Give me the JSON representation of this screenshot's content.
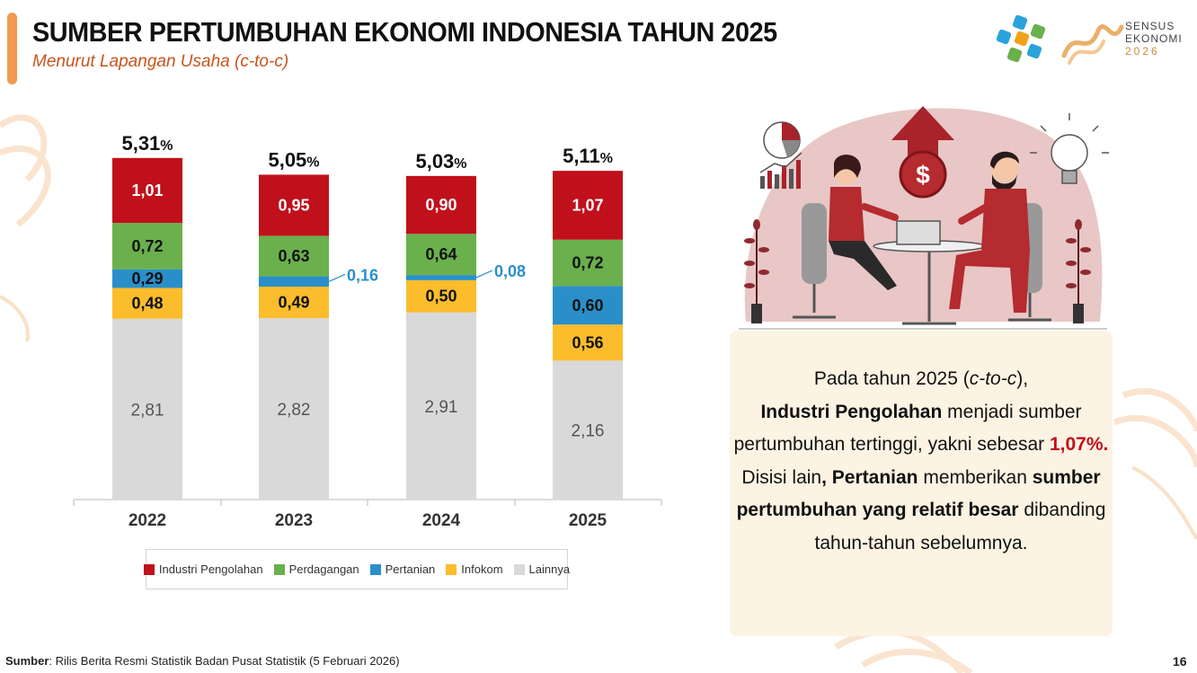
{
  "header": {
    "title": "SUMBER PERTUMBUHAN EKONOMI INDONESIA TAHUN 2025",
    "subtitle": "Menurut Lapangan Usaha (c-to-c)"
  },
  "logo": {
    "line1": "SENSUS",
    "line2": "EKONOMI",
    "line3": "2026"
  },
  "chart_data": {
    "type": "bar",
    "stacked": true,
    "categories": [
      "2022",
      "2023",
      "2024",
      "2025"
    ],
    "totals": [
      "5,31",
      "5,05",
      "5,03",
      "5,11"
    ],
    "total_suffix": "%",
    "series": [
      {
        "name": "Lainnya",
        "color": "#d9d9d9",
        "values": [
          2.81,
          2.82,
          2.91,
          2.16
        ],
        "labels": [
          "2,81",
          "2,82",
          "2,91",
          "2,16"
        ]
      },
      {
        "name": "Infokom",
        "color": "#fbbd2c",
        "values": [
          0.48,
          0.49,
          0.5,
          0.56
        ],
        "labels": [
          "0,48",
          "0,49",
          "0,50",
          "0,56"
        ]
      },
      {
        "name": "Pertanian",
        "color": "#2a8fc9",
        "values": [
          0.29,
          0.16,
          0.08,
          0.6
        ],
        "labels": [
          "0,29",
          "0,16",
          "0,08",
          "0,60"
        ]
      },
      {
        "name": "Perdagangan",
        "color": "#6ab04c",
        "values": [
          0.72,
          0.63,
          0.64,
          0.72
        ],
        "labels": [
          "0,72",
          "0,63",
          "0,64",
          "0,72"
        ]
      },
      {
        "name": "Industri Pengolahan",
        "color": "#c0101b",
        "values": [
          1.01,
          0.95,
          0.9,
          1.07
        ],
        "labels": [
          "1,01",
          "0,95",
          "0,90",
          "1,07"
        ]
      }
    ],
    "legend_position": "bottom",
    "grid": false
  },
  "legend": [
    {
      "name": "Industri Pengolahan",
      "color": "#c0101b"
    },
    {
      "name": "Perdagangan",
      "color": "#6ab04c"
    },
    {
      "name": "Pertanian",
      "color": "#2a8fc9"
    },
    {
      "name": "Infokom",
      "color": "#fbbd2c"
    },
    {
      "name": "Lainnya",
      "color": "#d9d9d9"
    }
  ],
  "panel": {
    "p1": "Pada tahun 2025 (",
    "p1_italic": "c-to-c",
    "p1_end": "),",
    "b1": "Industri Pengolahan",
    "t1": " menjadi sumber pertumbuhan tertinggi, yakni sebesar ",
    "red": "1,07%.",
    "t2": " Disisi lain",
    "comma": ",",
    "b2": "Pertanian",
    "t3": " memberikan ",
    "b3": "sumber pertumbuhan yang relatif besar",
    "t4": " dibanding tahun-tahun sebelumnya."
  },
  "footer": {
    "source_label": "Sumber",
    "source_text": ": Rilis Berita Resmi Statistik Badan Pusat Statistik (5 Februari 2026)",
    "page": "16"
  },
  "icons": [
    "bps-logo-icon",
    "sensus-ekonomi-logo-icon",
    "business-meeting-illustration",
    "pie-chart-icon",
    "bar-chart-icon",
    "dollar-coin-icon",
    "up-arrow-icon",
    "lightbulb-icon",
    "plant-icon"
  ],
  "colors": {
    "accent": "#f29a50",
    "subtitle": "#c8541f",
    "highlight": "#c0101b",
    "panel_bg": "#fdf3e3"
  }
}
